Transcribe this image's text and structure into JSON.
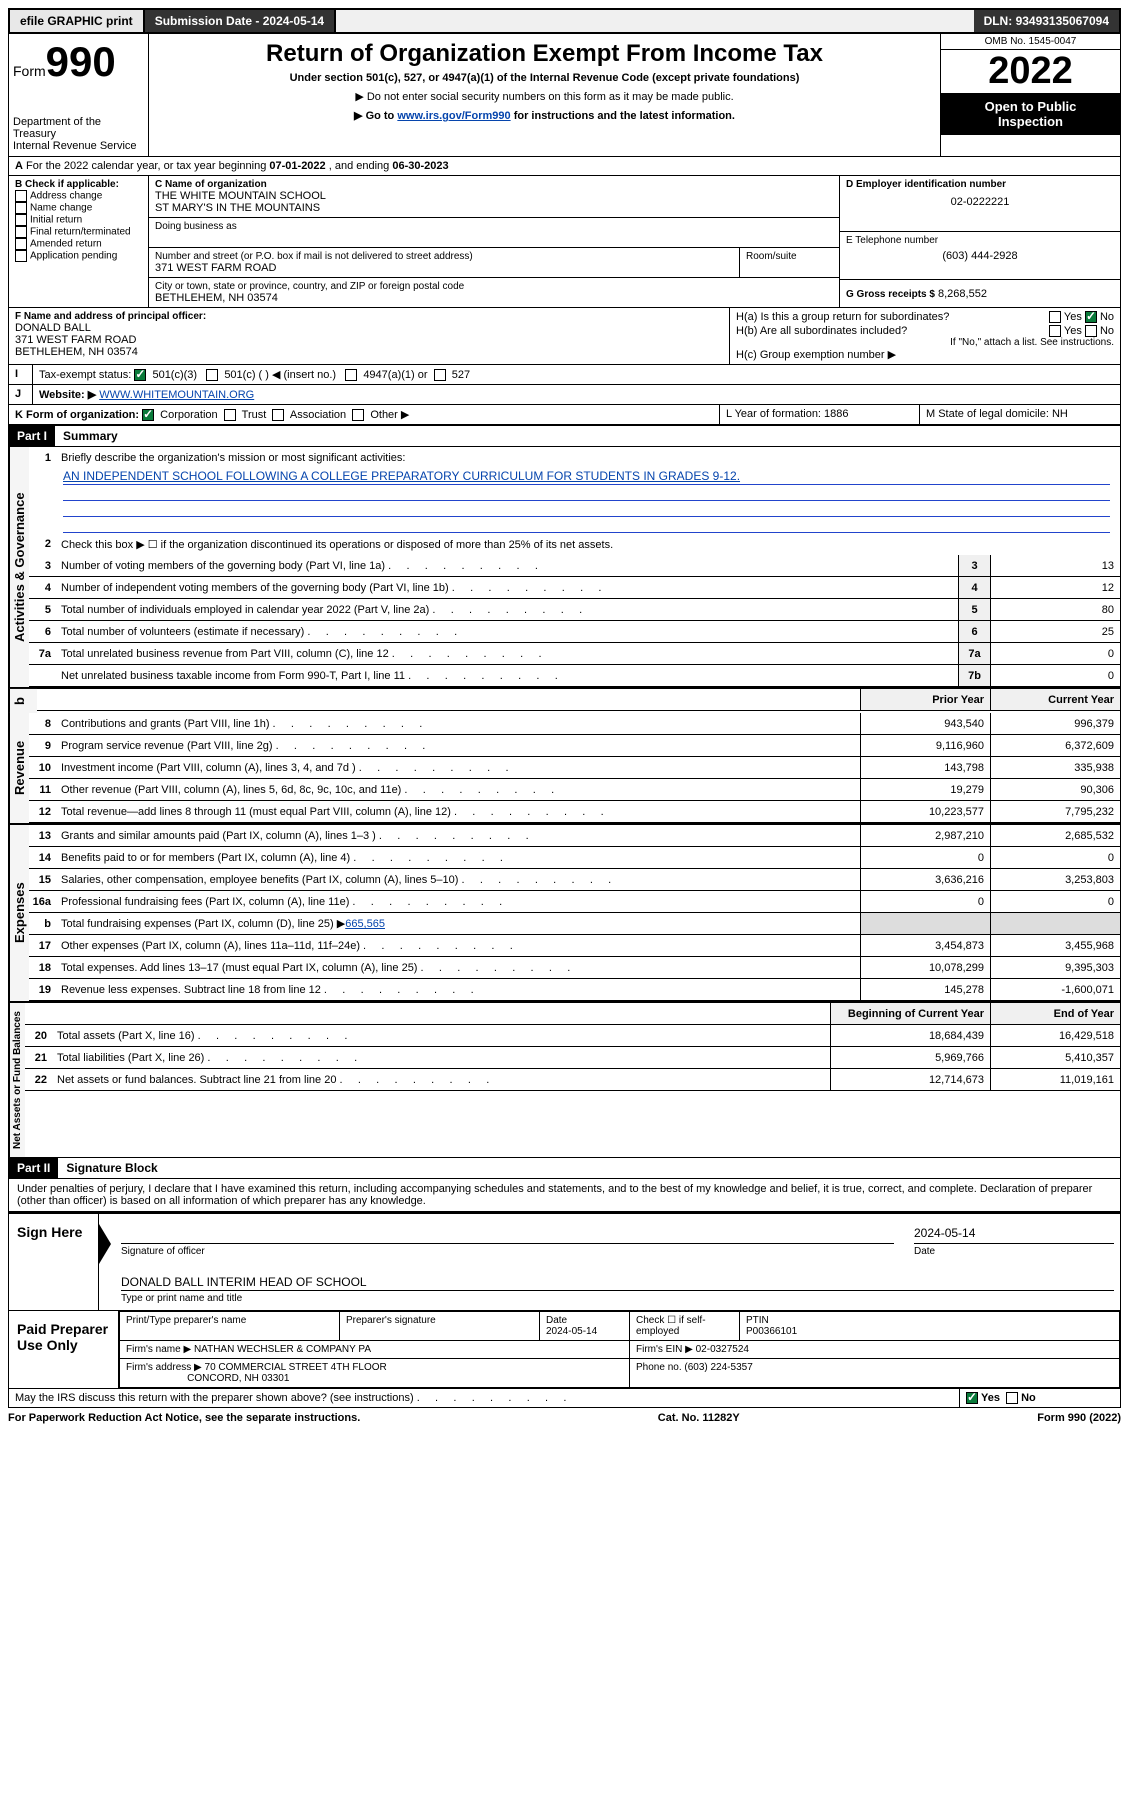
{
  "topbar": {
    "efile": "efile GRAPHIC print",
    "submission_label": "Submission Date - ",
    "submission_date": "2024-05-14",
    "dln_label": "DLN: ",
    "dln": "93493135067094"
  },
  "header": {
    "form_word": "Form",
    "form_num": "990",
    "dept": "Department of the Treasury",
    "irs": "Internal Revenue Service",
    "title": "Return of Organization Exempt From Income Tax",
    "subtitle1": "Under section 501(c), 527, or 4947(a)(1) of the Internal Revenue Code (except private foundations)",
    "subtitle2": "▶ Do not enter social security numbers on this form as it may be made public.",
    "subtitle3_pre": "▶ Go to ",
    "subtitle3_link": "www.irs.gov/Form990",
    "subtitle3_post": " for instructions and the latest information.",
    "omb_label": "OMB No. 1545-0047",
    "year": "2022",
    "inspect1": "Open to Public",
    "inspect2": "Inspection"
  },
  "periodA": {
    "label_pre": "For the 2022 calendar year, or tax year beginning ",
    "begin": "07-01-2022",
    "label_mid": " , and ending ",
    "end": "06-30-2023"
  },
  "boxB": {
    "title": "B Check if applicable:",
    "opts": [
      "Address change",
      "Name change",
      "Initial return",
      "Final return/terminated",
      "Amended return",
      "Application pending"
    ]
  },
  "boxC": {
    "name_lbl": "C Name of organization",
    "name1": "THE WHITE MOUNTAIN SCHOOL",
    "name2": "ST MARY'S IN THE MOUNTAINS",
    "dba_lbl": "Doing business as",
    "addr_lbl": "Number and street (or P.O. box if mail is not delivered to street address)",
    "room_lbl": "Room/suite",
    "street": "371 WEST FARM ROAD",
    "city_lbl": "City or town, state or province, country, and ZIP or foreign postal code",
    "city": "BETHLEHEM, NH  03574"
  },
  "boxD": {
    "lbl": "D Employer identification number",
    "val": "02-0222221"
  },
  "boxE": {
    "lbl": "E Telephone number",
    "val": "(603) 444-2928"
  },
  "boxG": {
    "lbl": "G Gross receipts $",
    "val": "8,268,552"
  },
  "boxF": {
    "lbl": "F  Name and address of principal officer:",
    "name": "DONALD BALL",
    "street": "371 WEST FARM ROAD",
    "city": "BETHLEHEM, NH  03574"
  },
  "boxH": {
    "a_lbl": "H(a)  Is this a group return for subordinates?",
    "yes": "Yes",
    "no": "No",
    "b_lbl": "H(b)  Are all subordinates included?",
    "b_note": "If \"No,\" attach a list. See instructions.",
    "c_lbl": "H(c)  Group exemption number ▶"
  },
  "rowI": {
    "lbl": "Tax-exempt status:",
    "o1": "501(c)(3)",
    "o2": "501(c) (  ) ◀ (insert no.)",
    "o3": "4947(a)(1) or",
    "o4": "527"
  },
  "rowJ": {
    "lbl": "Website: ▶",
    "val": "WWW.WHITEMOUNTAIN.ORG"
  },
  "rowK": {
    "lbl": "K Form of organization:",
    "o1": "Corporation",
    "o2": "Trust",
    "o3": "Association",
    "o4": "Other ▶"
  },
  "rowL": {
    "lbl": "L Year of formation: ",
    "val": "1886"
  },
  "rowM": {
    "lbl": "M State of legal domicile: ",
    "val": "NH"
  },
  "part1": {
    "hdr": "Part I",
    "title": "Summary"
  },
  "summary": {
    "l1_lbl": "Briefly describe the organization's mission or most significant activities:",
    "l1_txt": "AN INDEPENDENT SCHOOL FOLLOWING A COLLEGE PREPARATORY CURRICULUM FOR STUDENTS IN GRADES 9-12.",
    "l2": "Check this box ▶ ☐  if the organization discontinued its operations or disposed of more than 25% of its net assets.",
    "l3": {
      "t": "Number of voting members of the governing body (Part VI, line 1a)",
      "n": "3",
      "v": "13"
    },
    "l4": {
      "t": "Number of independent voting members of the governing body (Part VI, line 1b)",
      "n": "4",
      "v": "12"
    },
    "l5": {
      "t": "Total number of individuals employed in calendar year 2022 (Part V, line 2a)",
      "n": "5",
      "v": "80"
    },
    "l6": {
      "t": "Total number of volunteers (estimate if necessary)",
      "n": "6",
      "v": "25"
    },
    "l7a": {
      "t": "Total unrelated business revenue from Part VIII, column (C), line 12",
      "n": "7a",
      "v": "0"
    },
    "l7b": {
      "t": "Net unrelated business taxable income from Form 990-T, Part I, line 11",
      "n": "7b",
      "v": "0"
    },
    "prior_hdr": "Prior Year",
    "curr_hdr": "Current Year",
    "rev": [
      {
        "n": "8",
        "t": "Contributions and grants (Part VIII, line 1h)",
        "p": "943,540",
        "c": "996,379"
      },
      {
        "n": "9",
        "t": "Program service revenue (Part VIII, line 2g)",
        "p": "9,116,960",
        "c": "6,372,609"
      },
      {
        "n": "10",
        "t": "Investment income (Part VIII, column (A), lines 3, 4, and 7d )",
        "p": "143,798",
        "c": "335,938"
      },
      {
        "n": "11",
        "t": "Other revenue (Part VIII, column (A), lines 5, 6d, 8c, 9c, 10c, and 11e)",
        "p": "19,279",
        "c": "90,306"
      },
      {
        "n": "12",
        "t": "Total revenue—add lines 8 through 11 (must equal Part VIII, column (A), line 12)",
        "p": "10,223,577",
        "c": "7,795,232"
      }
    ],
    "exp": [
      {
        "n": "13",
        "t": "Grants and similar amounts paid (Part IX, column (A), lines 1–3 )",
        "p": "2,987,210",
        "c": "2,685,532"
      },
      {
        "n": "14",
        "t": "Benefits paid to or for members (Part IX, column (A), line 4)",
        "p": "0",
        "c": "0"
      },
      {
        "n": "15",
        "t": "Salaries, other compensation, employee benefits (Part IX, column (A), lines 5–10)",
        "p": "3,636,216",
        "c": "3,253,803"
      },
      {
        "n": "16a",
        "t": "Professional fundraising fees (Part IX, column (A), line 11e)",
        "p": "0",
        "c": "0"
      }
    ],
    "l16b_pre": "Total fundraising expenses (Part IX, column (D), line 25) ▶",
    "l16b_val": "665,565",
    "exp2": [
      {
        "n": "17",
        "t": "Other expenses (Part IX, column (A), lines 11a–11d, 11f–24e)",
        "p": "3,454,873",
        "c": "3,455,968"
      },
      {
        "n": "18",
        "t": "Total expenses. Add lines 13–17 (must equal Part IX, column (A), line 25)",
        "p": "10,078,299",
        "c": "9,395,303"
      },
      {
        "n": "19",
        "t": "Revenue less expenses. Subtract line 18 from line 12",
        "p": "145,278",
        "c": "-1,600,071"
      }
    ],
    "bal_beg": "Beginning of Current Year",
    "bal_end": "End of Year",
    "bal": [
      {
        "n": "20",
        "t": "Total assets (Part X, line 16)",
        "p": "18,684,439",
        "c": "16,429,518"
      },
      {
        "n": "21",
        "t": "Total liabilities (Part X, line 26)",
        "p": "5,969,766",
        "c": "5,410,357"
      },
      {
        "n": "22",
        "t": "Net assets or fund balances. Subtract line 21 from line 20",
        "p": "12,714,673",
        "c": "11,019,161"
      }
    ]
  },
  "tabs": {
    "gov": "Activities & Governance",
    "rev": "Revenue",
    "exp": "Expenses",
    "net": "Net Assets or Fund Balances"
  },
  "part2": {
    "hdr": "Part II",
    "title": "Signature Block"
  },
  "sig": {
    "decl": "Under penalties of perjury, I declare that I have examined this return, including accompanying schedules and statements, and to the best of my knowledge and belief, it is true, correct, and complete. Declaration of preparer (other than officer) is based on all information of which preparer has any knowledge.",
    "here": "Sign Here",
    "officer_lbl": "Signature of officer",
    "date_lbl": "Date",
    "date": "2024-05-14",
    "name": "DONALD BALL  INTERIM HEAD OF SCHOOL",
    "name_lbl": "Type or print name and title",
    "paid": "Paid Preparer Use Only",
    "h1": "Print/Type preparer's name",
    "h2": "Preparer's signature",
    "h3": "Date",
    "h3v": "2024-05-14",
    "h4": "Check ☐ if self-employed",
    "h5": "PTIN",
    "h5v": "P00366101",
    "firm_lbl": "Firm's name    ▶",
    "firm": "NATHAN WECHSLER & COMPANY PA",
    "ein_lbl": "Firm's EIN ▶",
    "ein": "02-0327524",
    "addr_lbl": "Firm's address ▶",
    "addr1": "70 COMMERCIAL STREET 4TH FLOOR",
    "addr2": "CONCORD, NH  03301",
    "phone_lbl": "Phone no. ",
    "phone": "(603) 224-5357",
    "discuss": "May the IRS discuss this return with the preparer shown above? (see instructions)"
  },
  "footer": {
    "l": "For Paperwork Reduction Act Notice, see the separate instructions.",
    "m": "Cat. No. 11282Y",
    "r": "Form 990 (2022)"
  }
}
